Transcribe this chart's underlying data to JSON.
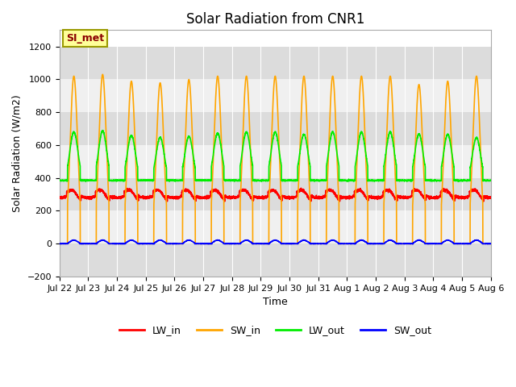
{
  "title": "Solar Radiation from CNR1",
  "xlabel": "Time",
  "ylabel": "Solar Radiation (W/m2)",
  "ylim": [
    -200,
    1300
  ],
  "yticks": [
    -200,
    0,
    200,
    400,
    600,
    800,
    1000,
    1200
  ],
  "xtick_labels": [
    "Jul 22",
    "Jul 23",
    "Jul 24",
    "Jul 25",
    "Jul 26",
    "Jul 27",
    "Jul 28",
    "Jul 29",
    "Jul 30",
    "Jul 31",
    "Aug 1",
    "Aug 2",
    "Aug 3",
    "Aug 4",
    "Aug 5",
    "Aug 6"
  ],
  "annotation_text": "SI_met",
  "annotation_color": "#8B0000",
  "annotation_bg": "#FFFF99",
  "annotation_border": "#999900",
  "fig_bg": "#FFFFFF",
  "plot_bg": "#FFFFFF",
  "band_color_dark": "#DCDCDC",
  "band_color_light": "#F0F0F0",
  "colors": {
    "LW_in": "#FF0000",
    "SW_in": "#FFA500",
    "LW_out": "#00EE00",
    "SW_out": "#0000FF"
  },
  "line_width": 1.2,
  "SW_in_peak": 1020,
  "LW_out_day_peak": 680,
  "LW_out_night": 385,
  "LW_in_base": 280,
  "LW_in_day_bump": 50,
  "SW_out_peak": 22,
  "num_days": 15,
  "points_per_day": 288,
  "band_ranges": [
    [
      -200,
      0
    ],
    [
      200,
      400
    ],
    [
      600,
      800
    ],
    [
      1000,
      1200
    ]
  ]
}
